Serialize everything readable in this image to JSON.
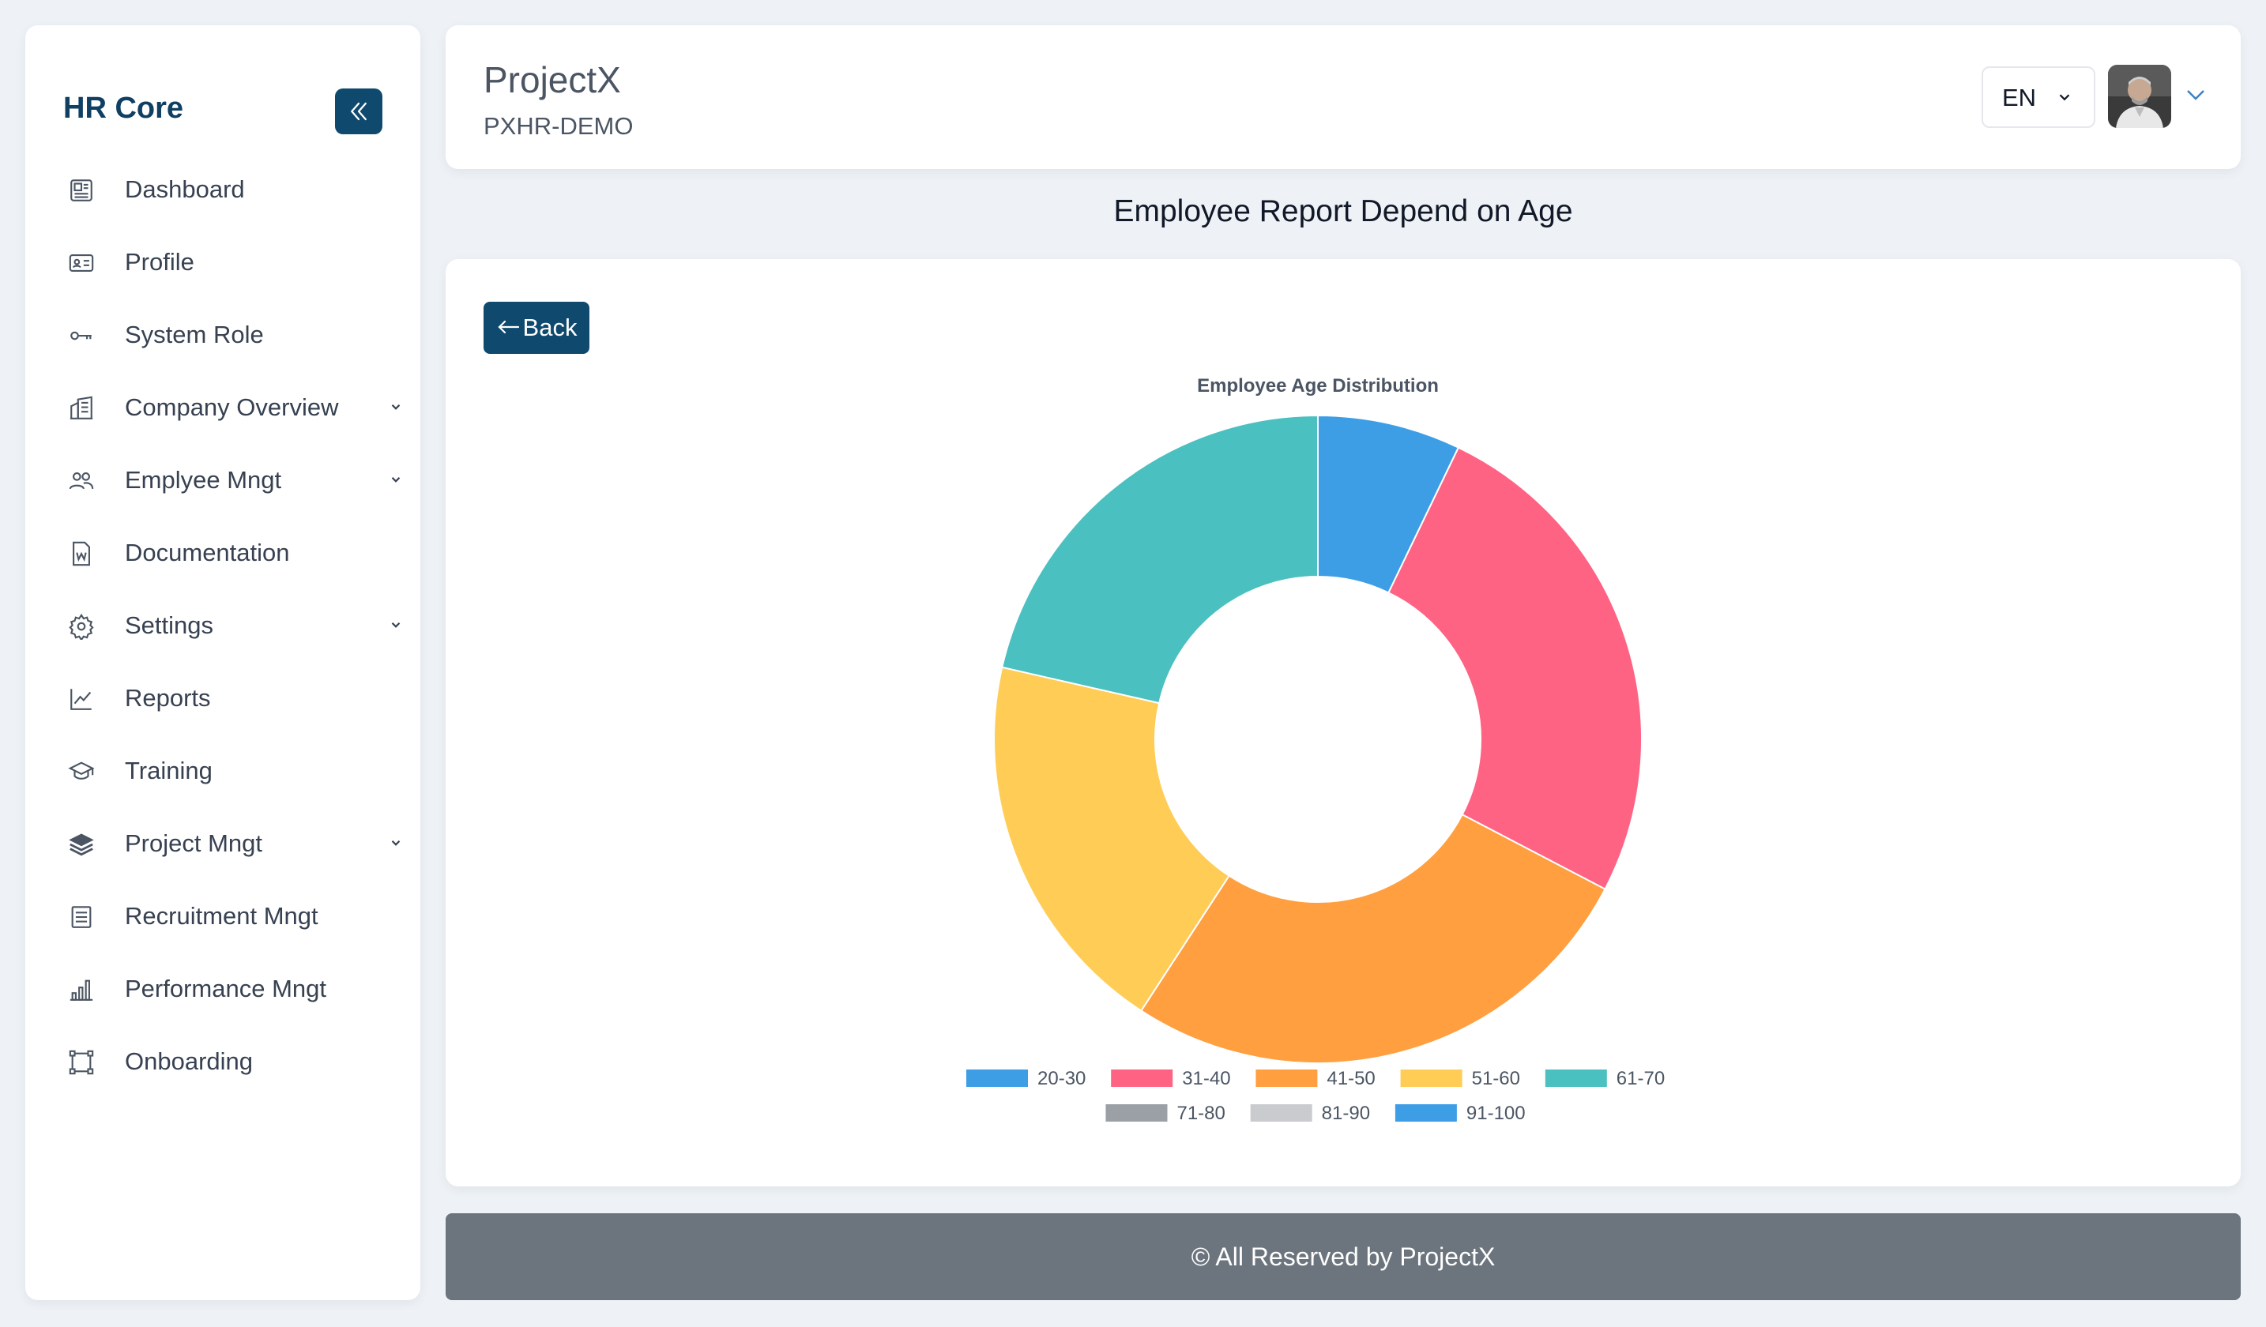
{
  "sidebar": {
    "brand": "HR Core",
    "items": [
      {
        "label": "Dashboard",
        "icon": "dashboard-icon",
        "has_submenu": false
      },
      {
        "label": "Profile",
        "icon": "id-card-icon",
        "has_submenu": false
      },
      {
        "label": "System Role",
        "icon": "key-icon",
        "has_submenu": false
      },
      {
        "label": "Company Overview",
        "icon": "building-icon",
        "has_submenu": true
      },
      {
        "label": "Emplyee Mngt",
        "icon": "users-icon",
        "has_submenu": true
      },
      {
        "label": "Documentation",
        "icon": "word-file-icon",
        "has_submenu": false
      },
      {
        "label": "Settings",
        "icon": "gear-icon",
        "has_submenu": true
      },
      {
        "label": "Reports",
        "icon": "line-chart-icon",
        "has_submenu": false
      },
      {
        "label": "Training",
        "icon": "graduation-cap-icon",
        "has_submenu": false
      },
      {
        "label": "Project Mngt",
        "icon": "layers-icon",
        "has_submenu": true
      },
      {
        "label": "Recruitment Mngt",
        "icon": "list-document-icon",
        "has_submenu": false
      },
      {
        "label": "Performance Mngt",
        "icon": "bar-chart-icon",
        "has_submenu": false
      },
      {
        "label": "Onboarding",
        "icon": "frame-icon",
        "has_submenu": false
      }
    ]
  },
  "header": {
    "title": "ProjectX",
    "subtitle": "PXHR-DEMO",
    "language": "EN"
  },
  "page": {
    "heading": "Employee Report Depend on Age",
    "back_label": "Back"
  },
  "chart_data": {
    "type": "pie",
    "variant": "doughnut",
    "title": "Employee Age Distribution",
    "categories": [
      "20-30",
      "31-40",
      "41-50",
      "51-60",
      "61-70",
      "71-80",
      "81-90",
      "91-100"
    ],
    "values": [
      7,
      25,
      26,
      19,
      21,
      0,
      0,
      0
    ],
    "colors": [
      "#3d9ee6",
      "#ff6384",
      "#ff9f40",
      "#ffcd56",
      "#4bc0c0",
      "#9aa0a6",
      "#c9cbcf",
      "#3d9ee6"
    ],
    "legend_position": "bottom"
  },
  "footer": {
    "text": "© All Reserved by ProjectX"
  },
  "colors": {
    "primary": "#0f4a6e",
    "brand_text": "#0f3f63",
    "footer_bg": "#6c757d",
    "page_bg": "#eef2f6"
  }
}
